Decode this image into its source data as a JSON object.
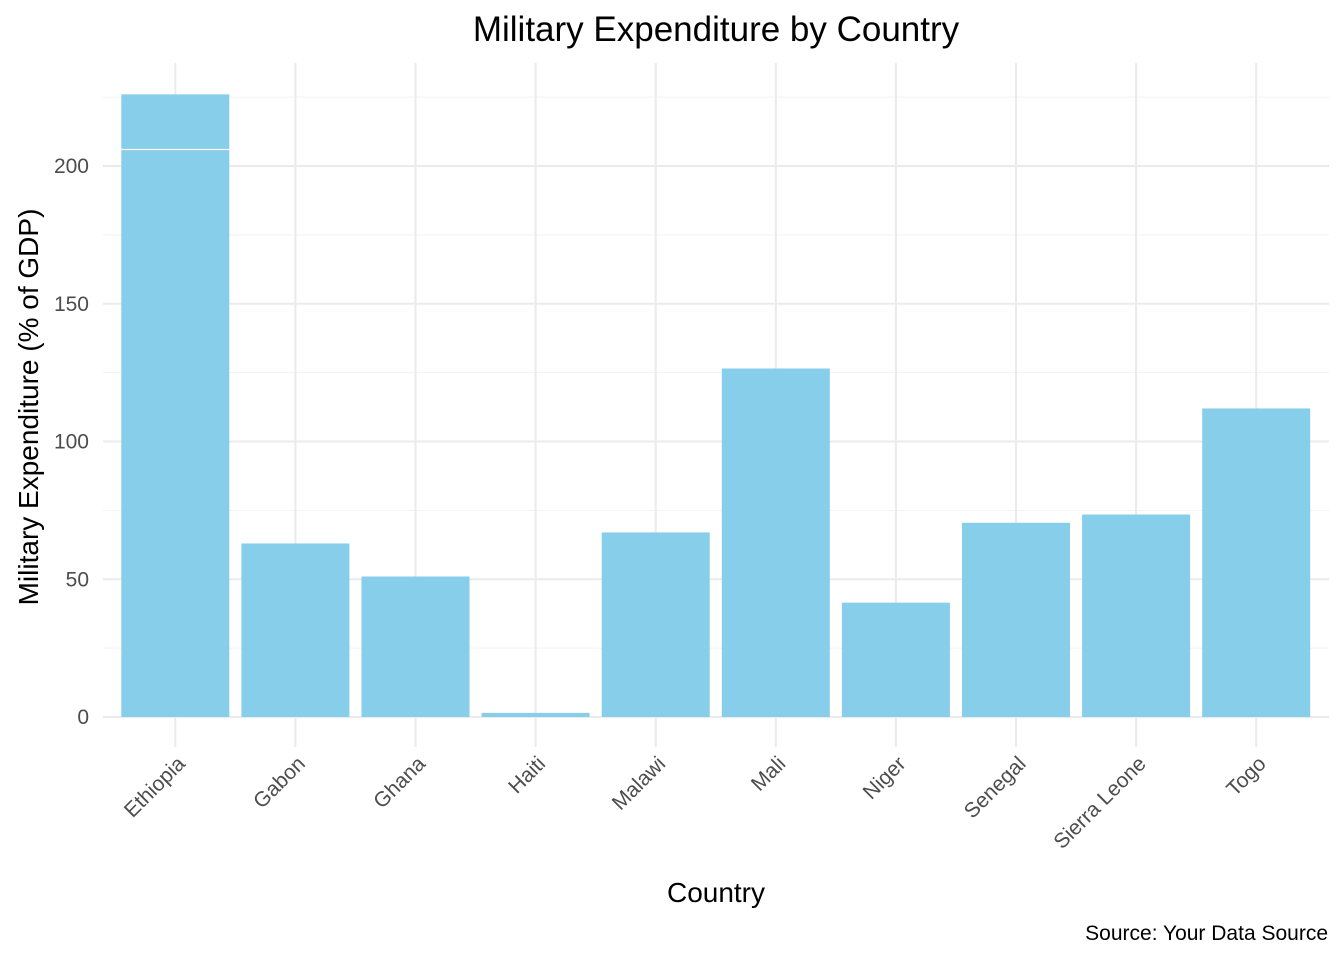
{
  "chart_data": {
    "type": "bar",
    "title": "Military Expenditure by Country",
    "xlabel": "Country",
    "ylabel": "Military Expenditure (% of GDP)",
    "caption": "Source: Your Data Source",
    "categories": [
      "Ethiopia",
      "Gabon",
      "Ghana",
      "Haiti",
      "Malawi",
      "Mali",
      "Niger",
      "Senegal",
      "Sierra Leone",
      "Togo"
    ],
    "values": [
      226,
      63,
      51,
      1.5,
      67,
      126.5,
      41.5,
      70.5,
      73.5,
      112
    ],
    "stack_split": {
      "category": "Ethiopia",
      "at": 206
    },
    "ylim": [
      0,
      226
    ],
    "yticks": [
      0,
      50,
      100,
      150,
      200
    ],
    "grid": true,
    "legend": "none",
    "colors": {
      "bar": "#87ceeb",
      "grid_major": "#ebebeb",
      "grid_minor": "#f2f2f2",
      "tick_text": "#4d4d4d",
      "text": "#000000"
    }
  }
}
